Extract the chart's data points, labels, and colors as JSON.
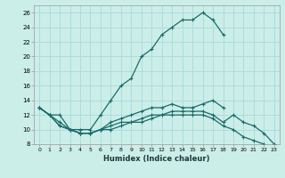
{
  "xlabel": "Humidex (Indice chaleur)",
  "ylabel": "",
  "bg_color": "#cceee8",
  "grid_color": "#aadddd",
  "line_color": "#1a6b6b",
  "xlim": [
    -0.5,
    23.5
  ],
  "ylim": [
    8,
    27
  ],
  "yticks": [
    8,
    10,
    12,
    14,
    16,
    18,
    20,
    22,
    24,
    26
  ],
  "xticks": [
    0,
    1,
    2,
    3,
    4,
    5,
    6,
    7,
    8,
    9,
    10,
    11,
    12,
    13,
    14,
    15,
    16,
    17,
    18,
    19,
    20,
    21,
    22,
    23
  ],
  "lines": [
    {
      "x": [
        0,
        1,
        2,
        3,
        4,
        5,
        6,
        7,
        8,
        9,
        10,
        11,
        12,
        13,
        14,
        15,
        16,
        17,
        18
      ],
      "y": [
        13,
        12,
        12,
        10,
        10,
        10,
        12,
        14,
        16,
        17,
        20,
        21,
        23,
        24,
        25,
        25,
        26,
        25,
        23
      ]
    },
    {
      "x": [
        0,
        1,
        2,
        3,
        4,
        5,
        6,
        7,
        8,
        9,
        10,
        11,
        12,
        13,
        14,
        15,
        16,
        17,
        18
      ],
      "y": [
        13,
        12,
        11,
        10,
        9.5,
        9.5,
        10,
        11,
        11.5,
        12,
        12.5,
        13,
        13,
        13.5,
        13,
        13,
        13.5,
        14,
        13
      ]
    },
    {
      "x": [
        0,
        1,
        2,
        3,
        4,
        5,
        6,
        7,
        8,
        9,
        10,
        11,
        12,
        13,
        14,
        15,
        16,
        17,
        18,
        19,
        20,
        21,
        22,
        23
      ],
      "y": [
        13,
        12,
        10.5,
        10,
        9.5,
        9.5,
        10,
        10.5,
        11,
        11,
        11.5,
        12,
        12,
        12.5,
        12.5,
        12.5,
        12.5,
        12,
        11,
        12,
        11,
        10.5,
        9.5,
        8
      ]
    },
    {
      "x": [
        0,
        1,
        2,
        3,
        4,
        5,
        6,
        7,
        8,
        9,
        10,
        11,
        12,
        13,
        14,
        15,
        16,
        17,
        18,
        19,
        20,
        21,
        22,
        23
      ],
      "y": [
        13,
        12,
        10.5,
        10,
        9.5,
        9.5,
        10,
        10,
        10.5,
        11,
        11,
        11.5,
        12,
        12,
        12,
        12,
        12,
        11.5,
        10.5,
        10,
        9,
        8.5,
        8,
        7.5
      ]
    }
  ]
}
